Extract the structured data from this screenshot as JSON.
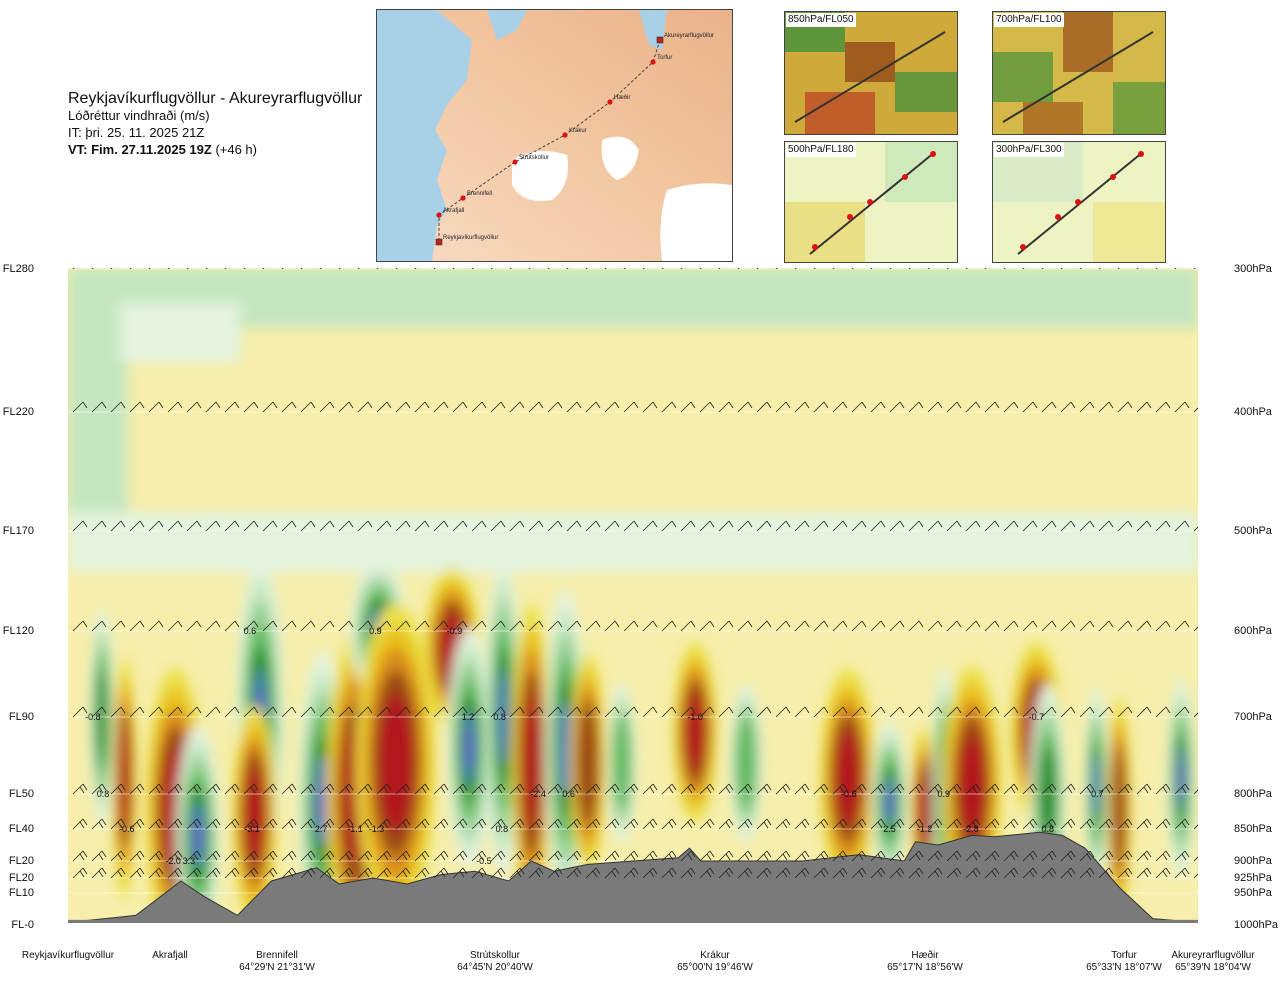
{
  "title": {
    "main": "Reykjavíkurflugvöllur - Akureyrarflugvöllur",
    "subtitle": "Lóðréttur vindhraði (m/s)",
    "it": "IT: þri. 25. 11. 2025 21Z",
    "vt": "VT: Fim. 27.11.2025 19Z",
    "vt_offset": "(+46 h)"
  },
  "overview_map": {
    "waypoints": [
      "Akureyrarflugvöllur",
      "Torfur",
      "Hæðir",
      "Krákur",
      "Strútskollur",
      "Brennifell",
      "Akrafjall",
      "Reykjavíkurflugvöllur"
    ]
  },
  "panels": [
    {
      "label": "850hPa/FL050"
    },
    {
      "label": "700hPa/FL100"
    },
    {
      "label": "500hPa/FL180"
    },
    {
      "label": "300hPa/FL300"
    }
  ],
  "chart_data": {
    "type": "heatmap",
    "title": "Lóðréttur vindhraði (m/s)",
    "y_left_labels": [
      {
        "label": "FL280",
        "hpa": 300
      },
      {
        "label": "FL220",
        "hpa": 400
      },
      {
        "label": "FL170",
        "hpa": 500
      },
      {
        "label": "FL120",
        "hpa": 600
      },
      {
        "label": "FL90",
        "hpa": 700
      },
      {
        "label": "FL50",
        "hpa": 800
      },
      {
        "label": "FL40",
        "hpa": 850
      },
      {
        "label": "FL20",
        "hpa": 900
      },
      {
        "label": "FL20",
        "hpa": 925
      },
      {
        "label": "FL10",
        "hpa": 950
      },
      {
        "label": "FL-0",
        "hpa": 1000
      }
    ],
    "y_right_labels": [
      "300hPa",
      "400hPa",
      "500hPa",
      "600hPa",
      "700hPa",
      "800hPa",
      "850hPa",
      "900hPa",
      "925hPa",
      "950hPa",
      "1000hPa"
    ],
    "x_waypoints": [
      {
        "name": "Reykjavíkurflugvöllur",
        "coord": ""
      },
      {
        "name": "Akrafjall",
        "coord": ""
      },
      {
        "name": "Brennifell",
        "coord": "64°29'N 21°31'W"
      },
      {
        "name": "Strútskollur",
        "coord": "64°45'N 20°40'W"
      },
      {
        "name": "Krákur",
        "coord": "65°00'N 19°46'W"
      },
      {
        "name": "Hæðir",
        "coord": "65°17'N 18°56'W"
      },
      {
        "name": "Torfur",
        "coord": "65°33'N 18°07'W"
      },
      {
        "name": "Akureyrarflugvöllur",
        "coord": "65°39'N 18°04'W"
      }
    ],
    "value_labels": [
      {
        "text": "-0.8",
        "x_frac": 0.022,
        "hpa": 700
      },
      {
        "text": "0.8",
        "x_frac": 0.031,
        "hpa": 800
      },
      {
        "text": "-0.6",
        "x_frac": 0.052,
        "hpa": 850
      },
      {
        "text": "-2.0",
        "x_frac": 0.093,
        "hpa": 900
      },
      {
        "text": "3.3",
        "x_frac": 0.107,
        "hpa": 900
      },
      {
        "text": "0.6",
        "x_frac": 0.161,
        "hpa": 600
      },
      {
        "text": "-3.1",
        "x_frac": 0.163,
        "hpa": 850
      },
      {
        "text": "2.7",
        "x_frac": 0.224,
        "hpa": 850
      },
      {
        "text": "-1.1",
        "x_frac": 0.254,
        "hpa": 850
      },
      {
        "text": "-1.3",
        "x_frac": 0.273,
        "hpa": 850
      },
      {
        "text": "0.9",
        "x_frac": 0.272,
        "hpa": 600
      },
      {
        "text": "-0.9",
        "x_frac": 0.342,
        "hpa": 600
      },
      {
        "text": "-0.5",
        "x_frac": 0.368,
        "hpa": 900
      },
      {
        "text": "1.2",
        "x_frac": 0.354,
        "hpa": 700
      },
      {
        "text": "0.8",
        "x_frac": 0.382,
        "hpa": 700
      },
      {
        "text": "0.8",
        "x_frac": 0.384,
        "hpa": 850
      },
      {
        "text": "-2.4",
        "x_frac": 0.416,
        "hpa": 800
      },
      {
        "text": "0.6",
        "x_frac": 0.443,
        "hpa": 800
      },
      {
        "text": "-1.0",
        "x_frac": 0.555,
        "hpa": 700
      },
      {
        "text": "-0.6",
        "x_frac": 0.691,
        "hpa": 800
      },
      {
        "text": "2.5",
        "x_frac": 0.727,
        "hpa": 850
      },
      {
        "text": "-1.2",
        "x_frac": 0.758,
        "hpa": 850
      },
      {
        "text": "0.9",
        "x_frac": 0.775,
        "hpa": 800
      },
      {
        "text": "-2.8",
        "x_frac": 0.799,
        "hpa": 850
      },
      {
        "text": "-0.7",
        "x_frac": 0.857,
        "hpa": 700
      },
      {
        "text": "0.8",
        "x_frac": 0.867,
        "hpa": 850
      },
      {
        "text": "0.7",
        "x_frac": 0.911,
        "hpa": 800
      }
    ],
    "colors": {
      "strong_up": "#6a5acd",
      "up_blue": "#4f7fc4",
      "up_green_dark": "#1a8a2a",
      "up_green": "#5fb85c",
      "up_green_mid": "#93cf8f",
      "up_green_light": "#c4e6bf",
      "up_green_pale": "#e3f3de",
      "neutral": "#f6eeaa",
      "down_yellow": "#ebe04a",
      "down_gold": "#e8c11f",
      "down_orange": "#d98a1c",
      "down_brown": "#9a4a14",
      "down_red": "#b3121a",
      "terrain": "#7a7a7a"
    },
    "gridlines": true,
    "wind_barbs": true
  }
}
